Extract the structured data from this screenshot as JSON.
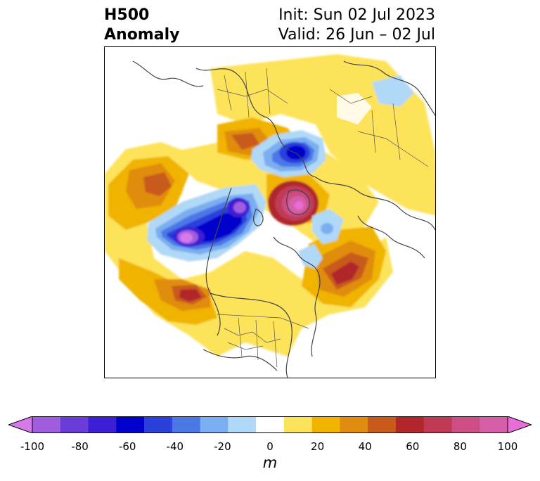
{
  "header": {
    "title_line1": "H500",
    "title_line2": "Anomaly",
    "init": "Init: Sun 02 Jul 2023",
    "valid": "Valid: 26 Jun – 02 Jul"
  },
  "colorbar": {
    "unit": "m",
    "min": -100,
    "max": 100,
    "tick_labels": [
      "-100",
      "-80",
      "-60",
      "-40",
      "-20",
      "0",
      "20",
      "40",
      "60",
      "80",
      "100"
    ],
    "colors": [
      "#d57ae8",
      "#a05de0",
      "#6a3dd9",
      "#3c1fd4",
      "#0000cc",
      "#2b3fdb",
      "#4c78e6",
      "#7aaef0",
      "#b0d8f7",
      "#ffffff",
      "#fde35a",
      "#f0b400",
      "#e08c10",
      "#c85a1a",
      "#b0262a",
      "#c03a56",
      "#cc4e84",
      "#d65fa8",
      "#e86dd8"
    ]
  },
  "chart_data": {
    "type": "heatmap",
    "title": "H500 Anomaly",
    "init": "Init: Sun 02 Jul 2023",
    "valid": "Valid: 26 Jun – 02 Jul",
    "colorbar_label": "m",
    "colorbar_range": [
      -100,
      100
    ],
    "colorbar_ticks": [
      -100,
      -80,
      -60,
      -40,
      -20,
      0,
      20,
      40,
      60,
      80,
      100
    ],
    "colorbar_extend": "both"
  }
}
